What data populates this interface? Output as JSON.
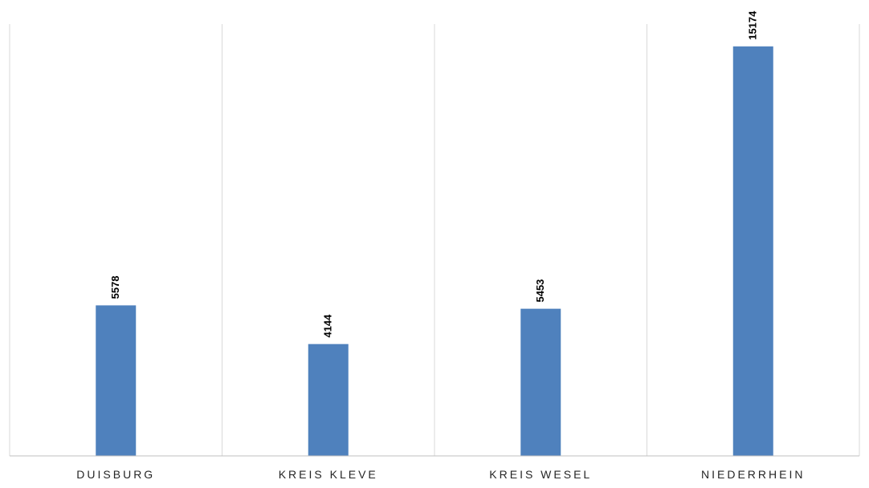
{
  "chart_data": {
    "type": "bar",
    "title": "",
    "xlabel": "",
    "ylabel": "",
    "categories": [
      "DUISBURG",
      "KREIS KLEVE",
      "KREIS WESEL",
      "NIEDERRHEIN"
    ],
    "values": [
      5578,
      4144,
      5453,
      15174
    ],
    "data_labels": [
      "5578",
      "4144",
      "5453",
      "15174"
    ],
    "ylim": [
      0,
      16000
    ],
    "grid": "vertical-category-separators",
    "legend": "none",
    "bar_color": "#4f81bd",
    "grid_color": "#d9d9d9",
    "axis_color": "#bfbfbf"
  }
}
